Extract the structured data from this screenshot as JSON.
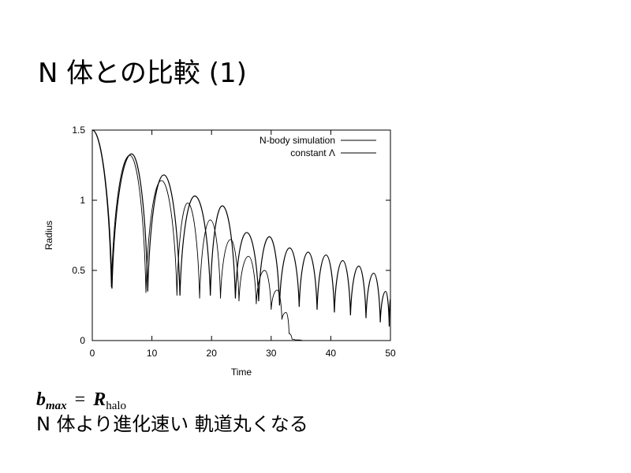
{
  "slide": {
    "title": "N 体との比較 (1)",
    "formula": [
      "b",
      "max",
      "=",
      "R",
      "halo"
    ],
    "note": "N 体より進化速い 軌道丸くなる"
  },
  "chart_data": {
    "type": "line",
    "x_label": "Time",
    "y_label": "Radius",
    "xlim": [
      0,
      50
    ],
    "xticks": [
      0,
      10,
      20,
      30,
      40,
      50
    ],
    "ylim": [
      0,
      1.5
    ],
    "yticks": [
      0,
      0.5,
      1,
      1.5
    ],
    "legend": "top-right",
    "series": [
      {
        "name": "N-body simulation",
        "color": "#000000",
        "x": [
          0,
          3.2,
          6.3,
          9.0,
          11.6,
          14.2,
          16.0,
          18.0,
          19.8,
          21.5,
          23.2,
          24.6,
          26.2,
          27.5,
          28.9,
          30.0,
          31.0,
          31.8,
          32.5,
          33.0,
          33.5,
          34.0,
          35.3
        ],
        "values": [
          1.5,
          0.38,
          1.32,
          0.34,
          1.14,
          0.32,
          0.98,
          0.3,
          0.86,
          0.3,
          0.72,
          0.28,
          0.6,
          0.26,
          0.5,
          0.22,
          0.36,
          0.15,
          0.2,
          0.05,
          0.01,
          0.005,
          0
        ]
      },
      {
        "name": "constant Λ",
        "color": "#000000",
        "x": [
          0,
          3.3,
          6.6,
          9.3,
          12.0,
          14.7,
          17.2,
          19.8,
          21.8,
          24.0,
          25.9,
          27.9,
          29.7,
          31.4,
          33.1,
          34.7,
          36.2,
          37.7,
          39.2,
          40.6,
          42.0,
          43.3,
          44.7,
          45.9,
          47.2,
          48.3,
          49.2,
          49.8,
          50
        ],
        "values": [
          1.5,
          0.37,
          1.33,
          0.35,
          1.18,
          0.32,
          1.03,
          0.32,
          0.96,
          0.3,
          0.77,
          0.28,
          0.74,
          0.25,
          0.66,
          0.24,
          0.63,
          0.22,
          0.61,
          0.2,
          0.57,
          0.18,
          0.53,
          0.16,
          0.48,
          0.13,
          0.35,
          0.1,
          0.3
        ]
      }
    ]
  }
}
